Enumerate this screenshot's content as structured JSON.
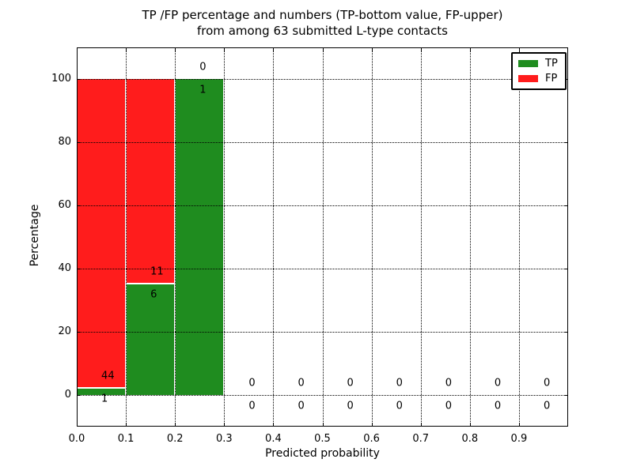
{
  "figure": {
    "title_line1": "TP /FP percentage and numbers (TP-bottom value, FP-upper)",
    "title_line2": "from among 63 submitted L-type contacts"
  },
  "chart_data": {
    "type": "bar",
    "stacked": true,
    "title": "TP /FP percentage and numbers (TP-bottom value, FP-upper) from among 63 submitted L-type contacts",
    "xlabel": "Predicted probability",
    "ylabel": "Percentage",
    "xlim": [
      0.0,
      1.0
    ],
    "ylim": [
      -10,
      110
    ],
    "grid": true,
    "grid_style": "dotted",
    "xtick_values": [
      0.0,
      0.1,
      0.2,
      0.3,
      0.4,
      0.5,
      0.6,
      0.7,
      0.8,
      0.9
    ],
    "xtick_labels": [
      "0.0",
      "0.1",
      "0.2",
      "0.3",
      "0.4",
      "0.5",
      "0.6",
      "0.7",
      "0.8",
      "0.9"
    ],
    "ytick_values": [
      0,
      20,
      40,
      60,
      80,
      100
    ],
    "ytick_labels": [
      "0",
      "20",
      "40",
      "60",
      "80",
      "100"
    ],
    "colors": {
      "tp": "#1f8c1f",
      "fp": "#ff1c1c"
    },
    "legend": {
      "position": "upper right",
      "entries": [
        {
          "label": "TP",
          "color_key": "tp"
        },
        {
          "label": "FP",
          "color_key": "fp"
        }
      ]
    },
    "total_contacts": 63,
    "label_convention": "TP count below boundary, FP count above boundary",
    "bins": [
      {
        "x0": 0.0,
        "x1": 0.1,
        "tp": 1,
        "fp": 44,
        "tp_pct": 2.22,
        "fp_pct": 97.78
      },
      {
        "x0": 0.1,
        "x1": 0.2,
        "tp": 6,
        "fp": 11,
        "tp_pct": 35.29,
        "fp_pct": 64.71
      },
      {
        "x0": 0.2,
        "x1": 0.3,
        "tp": 1,
        "fp": 0,
        "tp_pct": 100.0,
        "fp_pct": 0.0
      },
      {
        "x0": 0.3,
        "x1": 0.4,
        "tp": 0,
        "fp": 0,
        "tp_pct": 0.0,
        "fp_pct": 0.0
      },
      {
        "x0": 0.4,
        "x1": 0.5,
        "tp": 0,
        "fp": 0,
        "tp_pct": 0.0,
        "fp_pct": 0.0
      },
      {
        "x0": 0.5,
        "x1": 0.6,
        "tp": 0,
        "fp": 0,
        "tp_pct": 0.0,
        "fp_pct": 0.0
      },
      {
        "x0": 0.6,
        "x1": 0.7,
        "tp": 0,
        "fp": 0,
        "tp_pct": 0.0,
        "fp_pct": 0.0
      },
      {
        "x0": 0.7,
        "x1": 0.8,
        "tp": 0,
        "fp": 0,
        "tp_pct": 0.0,
        "fp_pct": 0.0
      },
      {
        "x0": 0.8,
        "x1": 0.9,
        "tp": 0,
        "fp": 0,
        "tp_pct": 0.0,
        "fp_pct": 0.0
      },
      {
        "x0": 0.9,
        "x1": 1.0,
        "tp": 0,
        "fp": 0,
        "tp_pct": 0.0,
        "fp_pct": 0.0
      }
    ]
  }
}
